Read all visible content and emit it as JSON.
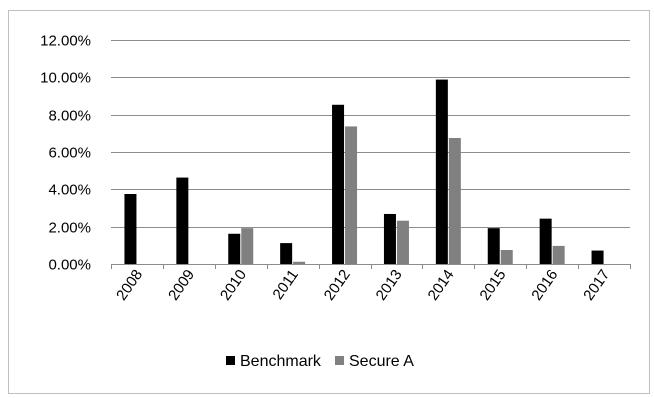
{
  "chart_data": {
    "type": "bar",
    "categories": [
      "2008",
      "2009",
      "2010",
      "2011",
      "2012",
      "2013",
      "2014",
      "2015",
      "2016",
      "2017"
    ],
    "series": [
      {
        "name": "Benchmark",
        "color": "#000000",
        "values": [
          0.0375,
          0.0463,
          0.0162,
          0.0112,
          0.0853,
          0.0268,
          0.0988,
          0.0192,
          0.0243,
          0.0072
        ]
      },
      {
        "name": "Secure A",
        "color": "#808080",
        "values": [
          0,
          0,
          0.0192,
          0.0012,
          0.0737,
          0.0232,
          0.0675,
          0.0075,
          0.0097,
          0
        ]
      }
    ],
    "ylim": [
      0,
      0.12
    ],
    "y_ticks": [
      0,
      0.02,
      0.04,
      0.06,
      0.08,
      0.1,
      0.12
    ],
    "y_tick_labels": [
      "0.00%",
      "2.00%",
      "4.00%",
      "6.00%",
      "8.00%",
      "10.00%",
      "12.00%"
    ],
    "grid": true,
    "legend_position": "bottom",
    "title": "",
    "xlabel": "",
    "ylabel": ""
  }
}
